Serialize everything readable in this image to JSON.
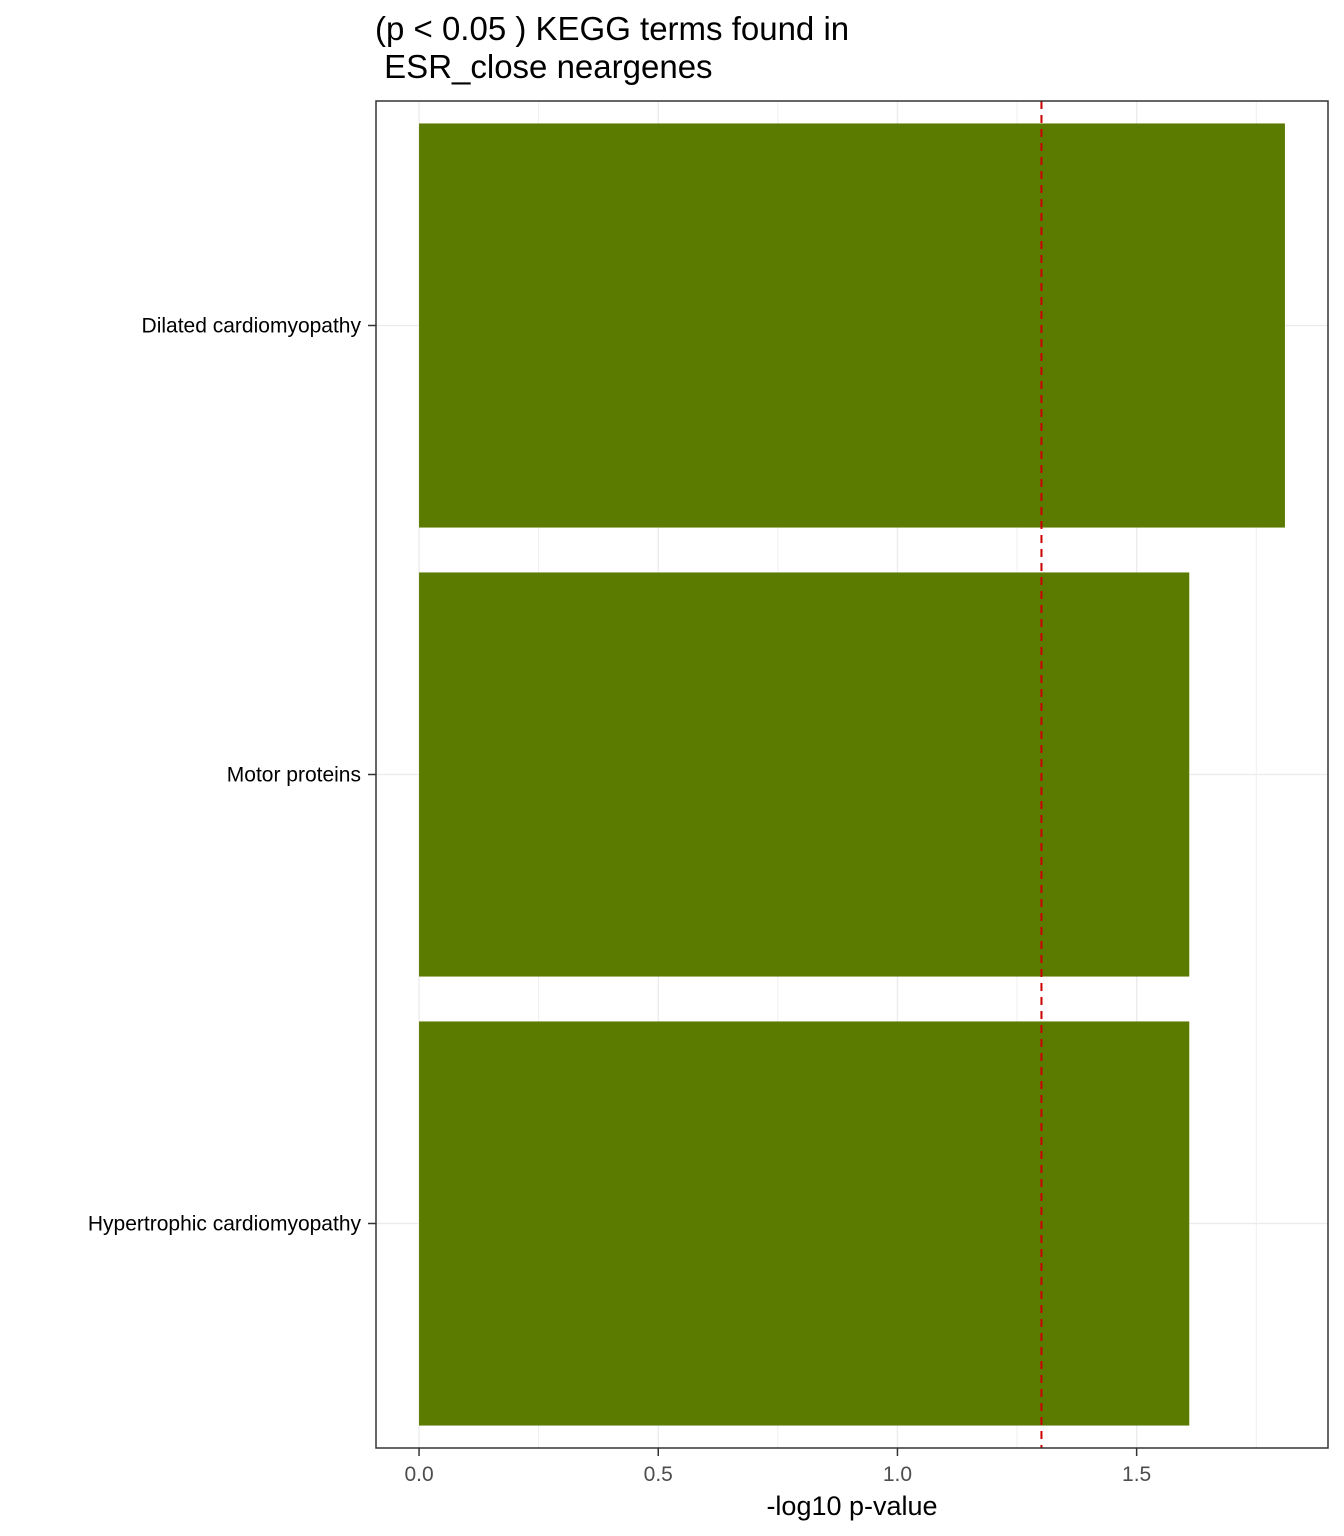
{
  "chart_data": {
    "type": "bar",
    "orientation": "horizontal",
    "title": "(p < 0.05 ) KEGG terms found in\n ESR_close neargenes",
    "title_lines": [
      "(p < 0.05 ) KEGG terms found in",
      " ESR_close neargenes"
    ],
    "xlabel": "-log10 p-value",
    "ylabel": "",
    "categories": [
      "Dilated cardiomyopathy",
      "Motor proteins",
      "Hypertrophic cardiomyopathy"
    ],
    "values": [
      1.81,
      1.61,
      1.61
    ],
    "bar_color": "#5a7a00",
    "threshold_line": {
      "value": 1.30103,
      "color": "#cc0000",
      "style": "dashed"
    },
    "xlim": [
      -0.09,
      1.9
    ],
    "xticks": [
      0.0,
      0.5,
      1.0,
      1.5
    ],
    "xtick_labels": [
      "0.0",
      "0.5",
      "1.0",
      "1.5"
    ],
    "grid": true,
    "legend": "none"
  }
}
